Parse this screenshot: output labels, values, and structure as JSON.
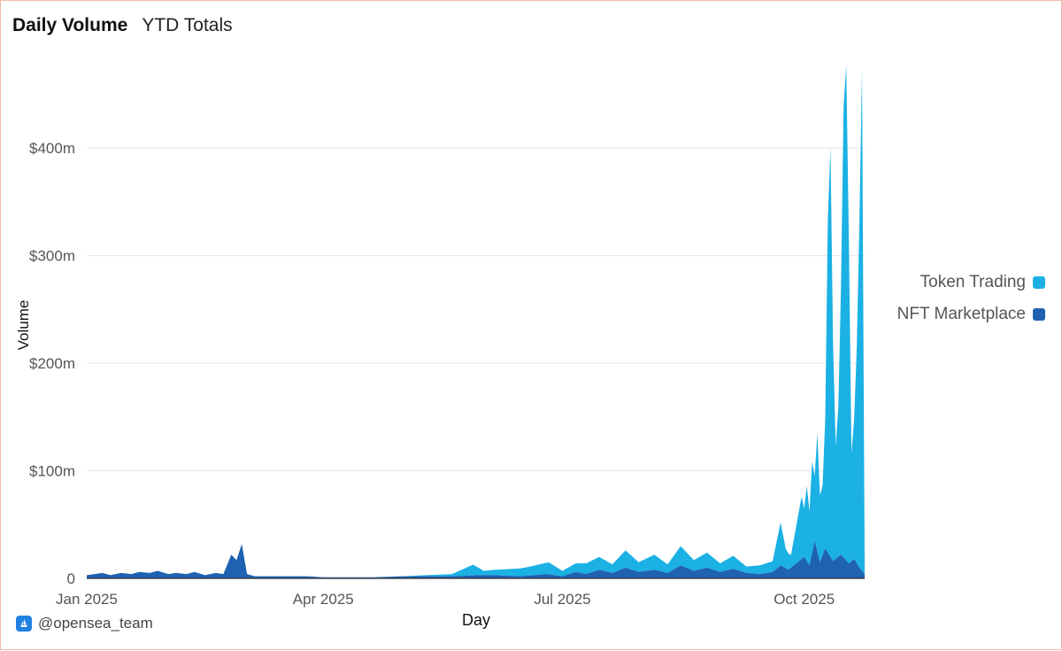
{
  "header": {
    "tabs": [
      {
        "label": "Daily Volume",
        "active": true
      },
      {
        "label": "YTD Totals",
        "active": false
      }
    ]
  },
  "credit": {
    "text": "@opensea_team",
    "icon": "opensea-logo-icon"
  },
  "colors": {
    "token_trading": "#1bb1e4",
    "nft_marketplace": "#1f62b1",
    "grid": "#e6e6e6"
  },
  "chart_data": {
    "type": "area",
    "stacked": true,
    "xlabel": "Day",
    "ylabel": "Volume",
    "x_range": [
      "2025-01-01",
      "2025-10-24"
    ],
    "ylim": [
      0,
      485
    ],
    "y_unit": "$m",
    "y_ticks": [
      {
        "value": 0,
        "label": "0"
      },
      {
        "value": 100,
        "label": "$100m"
      },
      {
        "value": 200,
        "label": "$200m"
      },
      {
        "value": 300,
        "label": "$300m"
      },
      {
        "value": 400,
        "label": "$400m"
      }
    ],
    "x_ticks": [
      {
        "date": "2025-01-01",
        "label": "Jan 2025"
      },
      {
        "date": "2025-04-01",
        "label": "Apr 2025"
      },
      {
        "date": "2025-07-01",
        "label": "Jul 2025"
      },
      {
        "date": "2025-10-01",
        "label": "Oct 2025"
      }
    ],
    "legend_position": "right",
    "grid": true,
    "series": [
      {
        "name": "NFT Marketplace",
        "color": "#1f62b1",
        "points": [
          [
            "2025-01-01",
            3
          ],
          [
            "2025-01-04",
            4
          ],
          [
            "2025-01-07",
            5
          ],
          [
            "2025-01-10",
            3
          ],
          [
            "2025-01-14",
            5
          ],
          [
            "2025-01-18",
            4
          ],
          [
            "2025-01-21",
            6
          ],
          [
            "2025-01-25",
            5
          ],
          [
            "2025-01-28",
            7
          ],
          [
            "2025-02-01",
            4
          ],
          [
            "2025-02-04",
            5
          ],
          [
            "2025-02-08",
            4
          ],
          [
            "2025-02-11",
            6
          ],
          [
            "2025-02-15",
            3
          ],
          [
            "2025-02-19",
            5
          ],
          [
            "2025-02-22",
            4
          ],
          [
            "2025-02-25",
            22
          ],
          [
            "2025-02-27",
            17
          ],
          [
            "2025-03-01",
            32
          ],
          [
            "2025-03-03",
            4
          ],
          [
            "2025-03-06",
            2
          ],
          [
            "2025-03-12",
            2
          ],
          [
            "2025-03-19",
            2
          ],
          [
            "2025-03-26",
            2
          ],
          [
            "2025-04-01",
            1
          ],
          [
            "2025-04-10",
            1
          ],
          [
            "2025-04-20",
            1
          ],
          [
            "2025-05-01",
            2
          ],
          [
            "2025-05-10",
            2
          ],
          [
            "2025-05-20",
            2
          ],
          [
            "2025-05-30",
            3
          ],
          [
            "2025-06-05",
            3
          ],
          [
            "2025-06-15",
            2
          ],
          [
            "2025-06-25",
            4
          ],
          [
            "2025-07-01",
            2
          ],
          [
            "2025-07-06",
            6
          ],
          [
            "2025-07-10",
            4
          ],
          [
            "2025-07-15",
            8
          ],
          [
            "2025-07-20",
            5
          ],
          [
            "2025-07-25",
            10
          ],
          [
            "2025-07-30",
            6
          ],
          [
            "2025-08-05",
            8
          ],
          [
            "2025-08-10",
            5
          ],
          [
            "2025-08-15",
            12
          ],
          [
            "2025-08-20",
            7
          ],
          [
            "2025-08-25",
            10
          ],
          [
            "2025-08-30",
            6
          ],
          [
            "2025-09-04",
            9
          ],
          [
            "2025-09-09",
            5
          ],
          [
            "2025-09-14",
            4
          ],
          [
            "2025-09-19",
            6
          ],
          [
            "2025-09-22",
            12
          ],
          [
            "2025-09-25",
            8
          ],
          [
            "2025-09-28",
            14
          ],
          [
            "2025-10-01",
            20
          ],
          [
            "2025-10-03",
            12
          ],
          [
            "2025-10-05",
            35
          ],
          [
            "2025-10-07",
            15
          ],
          [
            "2025-10-09",
            28
          ],
          [
            "2025-10-12",
            16
          ],
          [
            "2025-10-15",
            22
          ],
          [
            "2025-10-18",
            14
          ],
          [
            "2025-10-20",
            18
          ],
          [
            "2025-10-22",
            10
          ],
          [
            "2025-10-24",
            4
          ]
        ]
      },
      {
        "name": "Token Trading",
        "color": "#1bb1e4",
        "points": [
          [
            "2025-01-01",
            0
          ],
          [
            "2025-03-31",
            0
          ],
          [
            "2025-04-15",
            0
          ],
          [
            "2025-05-01",
            0
          ],
          [
            "2025-05-10",
            1
          ],
          [
            "2025-05-20",
            2
          ],
          [
            "2025-05-28",
            10
          ],
          [
            "2025-06-01",
            4
          ],
          [
            "2025-06-10",
            6
          ],
          [
            "2025-06-18",
            8
          ],
          [
            "2025-06-26",
            11
          ],
          [
            "2025-07-01",
            5
          ],
          [
            "2025-07-08",
            9
          ],
          [
            "2025-07-15",
            12
          ],
          [
            "2025-07-20",
            8
          ],
          [
            "2025-07-25",
            16
          ],
          [
            "2025-07-30",
            9
          ],
          [
            "2025-08-05",
            14
          ],
          [
            "2025-08-10",
            8
          ],
          [
            "2025-08-15",
            18
          ],
          [
            "2025-08-20",
            10
          ],
          [
            "2025-08-25",
            14
          ],
          [
            "2025-08-30",
            8
          ],
          [
            "2025-09-04",
            12
          ],
          [
            "2025-09-09",
            6
          ],
          [
            "2025-09-14",
            8
          ],
          [
            "2025-09-19",
            10
          ],
          [
            "2025-09-22",
            40
          ],
          [
            "2025-09-24",
            18
          ],
          [
            "2025-09-26",
            12
          ],
          [
            "2025-09-28",
            35
          ],
          [
            "2025-09-30",
            58
          ],
          [
            "2025-10-01",
            45
          ],
          [
            "2025-10-02",
            70
          ],
          [
            "2025-10-03",
            50
          ],
          [
            "2025-10-04",
            85
          ],
          [
            "2025-10-05",
            60
          ],
          [
            "2025-10-06",
            110
          ],
          [
            "2025-10-07",
            62
          ],
          [
            "2025-10-08",
            65
          ],
          [
            "2025-10-09",
            120
          ],
          [
            "2025-10-10",
            310
          ],
          [
            "2025-10-11",
            380
          ],
          [
            "2025-10-12",
            200
          ],
          [
            "2025-10-13",
            105
          ],
          [
            "2025-10-14",
            140
          ],
          [
            "2025-10-15",
            250
          ],
          [
            "2025-10-16",
            420
          ],
          [
            "2025-10-17",
            460
          ],
          [
            "2025-10-18",
            300
          ],
          [
            "2025-10-19",
            100
          ],
          [
            "2025-10-20",
            130
          ],
          [
            "2025-10-21",
            200
          ],
          [
            "2025-10-22",
            320
          ],
          [
            "2025-10-23",
            466
          ],
          [
            "2025-10-24",
            10
          ]
        ]
      }
    ]
  }
}
